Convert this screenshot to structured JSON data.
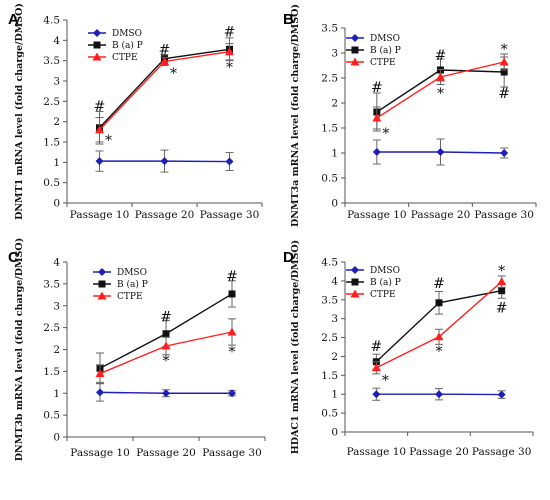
{
  "figure": {
    "letters": [
      "A",
      "B",
      "C",
      "D"
    ]
  },
  "chart_data": [
    {
      "type": "line",
      "panel": "A",
      "ylabel": "DNMT1 mRNA level (fold charge/DMSO)",
      "categories": [
        "Passage 10",
        "Passage 20",
        "Passage 30"
      ],
      "ylim": [
        0,
        4.5
      ],
      "yticks": [
        "0",
        "0.5",
        "1",
        "1.5",
        "2",
        "2.5",
        "3",
        "3.5",
        "4",
        "4.5"
      ],
      "legend_position": "top-left",
      "series": [
        {
          "name": "DMSO",
          "color": "#1f1fb4",
          "marker": "diamond",
          "values": [
            1.03,
            1.03,
            1.02
          ],
          "errors": [
            0.25,
            0.27,
            0.22
          ]
        },
        {
          "name": "B (a) P",
          "color": "#111111",
          "marker": "square",
          "values": [
            1.85,
            3.55,
            3.78
          ],
          "errors": [
            0.4,
            0.1,
            0.28
          ]
        },
        {
          "name": "CTPE",
          "color": "#ff1f1f",
          "marker": "triangle",
          "values": [
            1.8,
            3.48,
            3.72
          ],
          "errors": [
            0.3,
            0.1,
            0.2
          ]
        }
      ],
      "markers": [
        {
          "text": "#",
          "category": 0,
          "value": 2.38
        },
        {
          "text": "*",
          "category": 0,
          "value": 1.55,
          "side": "right"
        },
        {
          "text": "#",
          "category": 1,
          "value": 3.78
        },
        {
          "text": "*",
          "category": 1,
          "value": 3.2,
          "side": "right"
        },
        {
          "text": "#",
          "category": 2,
          "value": 4.22
        },
        {
          "text": "*",
          "category": 2,
          "value": 3.35
        }
      ]
    },
    {
      "type": "line",
      "panel": "B",
      "ylabel": "DNMT3a mRNA level (fold charge/DMSO)",
      "categories": [
        "Passage 10",
        "Passage 20",
        "Passage 30"
      ],
      "ylim": [
        0,
        3.5
      ],
      "yticks": [
        "0",
        "0.5",
        "1",
        "1.5",
        "2",
        "2.5",
        "3",
        "3.5"
      ],
      "legend_position": "top-left",
      "series": [
        {
          "name": "DMSO",
          "color": "#1f1fb4",
          "marker": "diamond",
          "values": [
            1.02,
            1.02,
            1.0
          ],
          "errors": [
            0.24,
            0.26,
            0.1
          ]
        },
        {
          "name": "B (a) P",
          "color": "#111111",
          "marker": "square",
          "values": [
            1.82,
            2.66,
            2.62
          ],
          "errors": [
            0.38,
            0.22,
            0.3
          ]
        },
        {
          "name": "CTPE",
          "color": "#ff1f1f",
          "marker": "triangle",
          "values": [
            1.7,
            2.52,
            2.82
          ],
          "errors": [
            0.22,
            0.15,
            0.16
          ]
        }
      ],
      "markers": [
        {
          "text": "#",
          "category": 0,
          "value": 2.32
        },
        {
          "text": "*",
          "category": 0,
          "value": 1.4,
          "side": "right"
        },
        {
          "text": "#",
          "category": 1,
          "value": 2.96
        },
        {
          "text": "*",
          "category": 1,
          "value": 2.2
        },
        {
          "text": "*",
          "category": 2,
          "value": 3.08
        },
        {
          "text": "#",
          "category": 2,
          "value": 2.2
        }
      ]
    },
    {
      "type": "line",
      "panel": "C",
      "ylabel": "DNMT3b mRNA level (fold charge/DMSO)",
      "categories": [
        "Passage 10",
        "Passage 20",
        "Passage 30"
      ],
      "ylim": [
        0,
        4
      ],
      "yticks": [
        "0",
        "0.5",
        "1",
        "1.5",
        "2",
        "2.5",
        "3",
        "3.5",
        "4"
      ],
      "legend_position": "top-left",
      "series": [
        {
          "name": "DMSO",
          "color": "#1f1fb4",
          "marker": "diamond",
          "values": [
            1.02,
            1.0,
            1.0
          ],
          "errors": [
            0.2,
            0.08,
            0.06
          ]
        },
        {
          "name": "B (a) P",
          "color": "#111111",
          "marker": "square",
          "values": [
            1.57,
            2.36,
            3.27
          ],
          "errors": [
            0.35,
            0.3,
            0.3
          ]
        },
        {
          "name": "CTPE",
          "color": "#ff1f1f",
          "marker": "triangle",
          "values": [
            1.45,
            2.08,
            2.4
          ],
          "errors": [
            0.2,
            0.2,
            0.3
          ]
        }
      ],
      "markers": [
        {
          "text": "#",
          "category": 1,
          "value": 2.75
        },
        {
          "text": "*",
          "category": 1,
          "value": 1.75
        },
        {
          "text": "#",
          "category": 2,
          "value": 3.68
        },
        {
          "text": "*",
          "category": 2,
          "value": 1.95
        }
      ]
    },
    {
      "type": "line",
      "panel": "D",
      "ylabel": "HDAC1 mRNA level (fold charge/DMSO)",
      "categories": [
        "Passage 10",
        "Passage 20",
        "Passage 30"
      ],
      "ylim": [
        0,
        4.5
      ],
      "yticks": [
        "0",
        "0.5",
        "1",
        "1.5",
        "2",
        "2.5",
        "3",
        "3.5",
        "4",
        "4.5"
      ],
      "legend_position": "top-left",
      "series": [
        {
          "name": "DMSO",
          "color": "#1f1fb4",
          "marker": "diamond",
          "values": [
            1.0,
            1.0,
            0.99
          ],
          "errors": [
            0.16,
            0.15,
            0.1
          ]
        },
        {
          "name": "B (a) P",
          "color": "#111111",
          "marker": "square",
          "values": [
            1.86,
            3.42,
            3.74
          ],
          "errors": [
            0.2,
            0.3,
            0.2
          ]
        },
        {
          "name": "CTPE",
          "color": "#ff1f1f",
          "marker": "triangle",
          "values": [
            1.7,
            2.52,
            3.98
          ],
          "errors": [
            0.16,
            0.2,
            0.15
          ]
        }
      ],
      "markers": [
        {
          "text": "#",
          "category": 0,
          "value": 2.28
        },
        {
          "text": "*",
          "category": 0,
          "value": 1.38,
          "side": "right"
        },
        {
          "text": "#",
          "category": 1,
          "value": 3.94
        },
        {
          "text": "*",
          "category": 1,
          "value": 2.15
        },
        {
          "text": "*",
          "category": 2,
          "value": 4.28
        },
        {
          "text": "#",
          "category": 2,
          "value": 3.3
        }
      ]
    }
  ]
}
